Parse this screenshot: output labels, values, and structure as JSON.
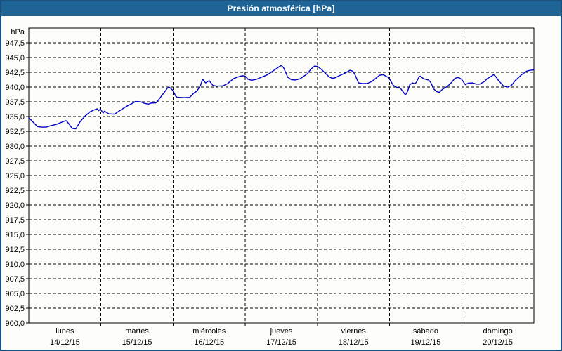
{
  "window": {
    "title": "Presión atmosférica [hPa]",
    "colors": {
      "titlebar_bg": "#1E6496",
      "titlebar_text": "#FFFFFF",
      "frame": "#1B5380",
      "background": "#FDFDFA",
      "plot_border": "#000000",
      "gridline": "#000000",
      "label_text": "#000000",
      "line": "#0000C8"
    }
  },
  "chart_data": {
    "type": "line",
    "title": "Presión atmosférica [hPa]",
    "legend": "none",
    "grid": "dashed",
    "y_axis": {
      "unit_label": "hPa",
      "min": 900,
      "max": 950,
      "grid_step": 2.5,
      "ticks": [
        {
          "value": 947.5,
          "label": "947,5"
        },
        {
          "value": 945.0,
          "label": "945,0"
        },
        {
          "value": 942.5,
          "label": "942,5"
        },
        {
          "value": 940.0,
          "label": "940,0"
        },
        {
          "value": 937.5,
          "label": "937,5"
        },
        {
          "value": 935.0,
          "label": "935,0"
        },
        {
          "value": 932.5,
          "label": "932,5"
        },
        {
          "value": 930.0,
          "label": "930,0"
        },
        {
          "value": 927.5,
          "label": "927,5"
        },
        {
          "value": 925.0,
          "label": "925,0"
        },
        {
          "value": 922.5,
          "label": "922,5"
        },
        {
          "value": 920.0,
          "label": "920,0"
        },
        {
          "value": 917.5,
          "label": "917,5"
        },
        {
          "value": 915.0,
          "label": "915,0"
        },
        {
          "value": 912.5,
          "label": "912,5"
        },
        {
          "value": 910.0,
          "label": "910,0"
        },
        {
          "value": 907.5,
          "label": "907,5"
        },
        {
          "value": 905.0,
          "label": "905,0"
        },
        {
          "value": 902.5,
          "label": "902,5"
        },
        {
          "value": 900.0,
          "label": "900,0"
        }
      ]
    },
    "x_axis": {
      "span_days": 7,
      "days": [
        {
          "name": "lunes",
          "date": "14/12/15"
        },
        {
          "name": "martes",
          "date": "15/12/15"
        },
        {
          "name": "miércoles",
          "date": "16/12/15"
        },
        {
          "name": "jueves",
          "date": "17/12/15"
        },
        {
          "name": "viernes",
          "date": "18/12/15"
        },
        {
          "name": "sábado",
          "date": "19/12/15"
        },
        {
          "name": "domingo",
          "date": "20/12/15"
        }
      ]
    },
    "series": [
      {
        "name": "Presión atmosférica",
        "color": "#0000C8",
        "x_unit": "days_from_start",
        "y_unit": "hPa",
        "points": [
          [
            0.0,
            934.8
          ],
          [
            0.04,
            934.3
          ],
          [
            0.08,
            933.8
          ],
          [
            0.12,
            933.3
          ],
          [
            0.17,
            933.2
          ],
          [
            0.24,
            933.2
          ],
          [
            0.29,
            933.4
          ],
          [
            0.39,
            933.7
          ],
          [
            0.49,
            934.2
          ],
          [
            0.52,
            934.3
          ],
          [
            0.56,
            933.7
          ],
          [
            0.6,
            933.0
          ],
          [
            0.65,
            932.9
          ],
          [
            0.71,
            934.1
          ],
          [
            0.78,
            935.1
          ],
          [
            0.85,
            935.8
          ],
          [
            0.9,
            936.1
          ],
          [
            0.95,
            936.3
          ],
          [
            0.97,
            936.0
          ],
          [
            0.99,
            936.3
          ],
          [
            1.03,
            935.6
          ],
          [
            1.05,
            935.9
          ],
          [
            1.11,
            935.45
          ],
          [
            1.19,
            935.4
          ],
          [
            1.26,
            936.0
          ],
          [
            1.35,
            936.7
          ],
          [
            1.43,
            937.2
          ],
          [
            1.48,
            937.55
          ],
          [
            1.55,
            937.5
          ],
          [
            1.6,
            937.25
          ],
          [
            1.66,
            937.1
          ],
          [
            1.7,
            937.3
          ],
          [
            1.76,
            937.3
          ],
          [
            1.79,
            937.7
          ],
          [
            1.84,
            938.5
          ],
          [
            1.89,
            939.3
          ],
          [
            1.92,
            939.8
          ],
          [
            1.95,
            939.95
          ],
          [
            1.99,
            939.5
          ],
          [
            2.01,
            939.1
          ],
          [
            2.04,
            938.4
          ],
          [
            2.06,
            938.25
          ],
          [
            2.15,
            938.2
          ],
          [
            2.23,
            938.25
          ],
          [
            2.29,
            939.0
          ],
          [
            2.33,
            939.3
          ],
          [
            2.38,
            940.3
          ],
          [
            2.41,
            941.35
          ],
          [
            2.45,
            940.7
          ],
          [
            2.5,
            941.1
          ],
          [
            2.55,
            940.3
          ],
          [
            2.6,
            940.15
          ],
          [
            2.69,
            940.2
          ],
          [
            2.75,
            940.55
          ],
          [
            2.84,
            941.45
          ],
          [
            2.93,
            941.85
          ],
          [
            2.97,
            941.9
          ],
          [
            3.0,
            941.85
          ],
          [
            3.04,
            941.3
          ],
          [
            3.09,
            941.15
          ],
          [
            3.15,
            941.3
          ],
          [
            3.2,
            941.55
          ],
          [
            3.3,
            942.05
          ],
          [
            3.4,
            942.85
          ],
          [
            3.47,
            943.45
          ],
          [
            3.5,
            943.65
          ],
          [
            3.53,
            943.3
          ],
          [
            3.56,
            942.45
          ],
          [
            3.59,
            941.65
          ],
          [
            3.64,
            941.25
          ],
          [
            3.69,
            941.2
          ],
          [
            3.73,
            941.3
          ],
          [
            3.76,
            941.4
          ],
          [
            3.86,
            942.25
          ],
          [
            3.91,
            943.05
          ],
          [
            3.96,
            943.55
          ],
          [
            4.0,
            943.5
          ],
          [
            4.05,
            943.05
          ],
          [
            4.1,
            942.45
          ],
          [
            4.16,
            941.75
          ],
          [
            4.2,
            941.5
          ],
          [
            4.24,
            941.55
          ],
          [
            4.3,
            941.9
          ],
          [
            4.39,
            942.4
          ],
          [
            4.45,
            942.85
          ],
          [
            4.49,
            942.7
          ],
          [
            4.52,
            942.1
          ],
          [
            4.57,
            940.7
          ],
          [
            4.62,
            940.6
          ],
          [
            4.69,
            940.6
          ],
          [
            4.76,
            941.0
          ],
          [
            4.86,
            942.0
          ],
          [
            4.91,
            942.1
          ],
          [
            4.99,
            941.6
          ],
          [
            5.05,
            940.3
          ],
          [
            5.1,
            939.95
          ],
          [
            5.15,
            939.8
          ],
          [
            5.18,
            939.3
          ],
          [
            5.22,
            938.65
          ],
          [
            5.25,
            939.3
          ],
          [
            5.28,
            940.4
          ],
          [
            5.32,
            940.7
          ],
          [
            5.35,
            940.55
          ],
          [
            5.37,
            940.8
          ],
          [
            5.41,
            941.8
          ],
          [
            5.43,
            941.85
          ],
          [
            5.47,
            941.4
          ],
          [
            5.54,
            941.2
          ],
          [
            5.57,
            940.8
          ],
          [
            5.61,
            939.7
          ],
          [
            5.65,
            939.25
          ],
          [
            5.69,
            939.1
          ],
          [
            5.73,
            939.6
          ],
          [
            5.8,
            940.1
          ],
          [
            5.86,
            940.8
          ],
          [
            5.9,
            941.4
          ],
          [
            5.93,
            941.6
          ],
          [
            5.96,
            941.6
          ],
          [
            6.0,
            941.3
          ],
          [
            6.05,
            940.4
          ],
          [
            6.09,
            940.65
          ],
          [
            6.15,
            940.7
          ],
          [
            6.2,
            940.5
          ],
          [
            6.25,
            940.5
          ],
          [
            6.32,
            941.0
          ],
          [
            6.35,
            941.4
          ],
          [
            6.42,
            941.9
          ],
          [
            6.44,
            942.1
          ],
          [
            6.47,
            941.8
          ],
          [
            6.51,
            941.1
          ],
          [
            6.58,
            940.15
          ],
          [
            6.64,
            940.0
          ],
          [
            6.69,
            940.3
          ],
          [
            6.74,
            941.1
          ],
          [
            6.83,
            942.1
          ],
          [
            6.9,
            942.7
          ],
          [
            6.95,
            942.85
          ],
          [
            7.0,
            942.9
          ]
        ]
      }
    ]
  }
}
